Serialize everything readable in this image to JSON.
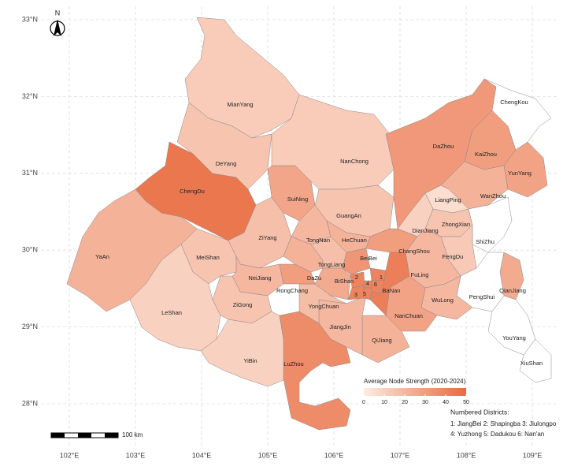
{
  "map": {
    "north": "N",
    "scale_bar": "100 km",
    "lat_ticks": [
      {
        "value": 33,
        "label": "33°N"
      },
      {
        "value": 32,
        "label": "32°N"
      },
      {
        "value": 31,
        "label": "31°N"
      },
      {
        "value": 30,
        "label": "30°N"
      },
      {
        "value": 29,
        "label": "29°N"
      },
      {
        "value": 28,
        "label": "28°N"
      }
    ],
    "lon_ticks": [
      {
        "value": 102,
        "label": "102°E"
      },
      {
        "value": 103,
        "label": "103°E"
      },
      {
        "value": 104,
        "label": "104°E"
      },
      {
        "value": 105,
        "label": "105°E"
      },
      {
        "value": 106,
        "label": "106°E"
      },
      {
        "value": 107,
        "label": "107°E"
      },
      {
        "value": 108,
        "label": "108°E"
      },
      {
        "value": 109,
        "label": "109°E"
      }
    ],
    "colorbar": {
      "title": "Average Node Strength (2020-2024)",
      "lim": [
        0,
        50
      ],
      "ticks": [
        0,
        10,
        20,
        30,
        40,
        50
      ],
      "colors": [
        "#fdebe0",
        "#e96a3f"
      ]
    },
    "no_data_color": "#ffffff",
    "regions": [
      {
        "name": "MianYang",
        "value": 12
      },
      {
        "name": "DeYang",
        "value": 15
      },
      {
        "name": "ChengDu",
        "value": 45
      },
      {
        "name": "YaAn",
        "value": 22
      },
      {
        "name": "MeiShan",
        "value": 15
      },
      {
        "name": "LeShan",
        "value": 10
      },
      {
        "name": "ZiYang",
        "value": 17
      },
      {
        "name": "NeiJiang",
        "value": 20
      },
      {
        "name": "ZiGong",
        "value": 15
      },
      {
        "name": "YiBin",
        "value": 10
      },
      {
        "name": "SuiNing",
        "value": 27
      },
      {
        "name": "NanChong",
        "value": 12
      },
      {
        "name": "GuangAn",
        "value": 15
      },
      {
        "name": "DaZhou",
        "value": 32
      },
      {
        "name": "KaiZhou",
        "value": 30
      },
      {
        "name": "YunYang",
        "value": 28
      },
      {
        "name": "ChengKou",
        "value": null
      },
      {
        "name": "WanZhou",
        "value": 22
      },
      {
        "name": "LiangPing",
        "value": 5
      },
      {
        "name": "DianJiang",
        "value": 10
      },
      {
        "name": "ZhongXian",
        "value": 15
      },
      {
        "name": "ShiZhu",
        "value": null
      },
      {
        "name": "FengDu",
        "value": 13
      },
      {
        "name": "FuLing",
        "value": 20
      },
      {
        "name": "QianJiang",
        "value": 25
      },
      {
        "name": "PengShui",
        "value": null
      },
      {
        "name": "YouYang",
        "value": null
      },
      {
        "name": "XiuShan",
        "value": null
      },
      {
        "name": "WuLong",
        "value": 20
      },
      {
        "name": "NanChuan",
        "value": 28
      },
      {
        "name": "QiJiang",
        "value": 22
      },
      {
        "name": "JiangJin",
        "value": 20
      },
      {
        "name": "YongChuan",
        "value": 18
      },
      {
        "name": "LuZhou",
        "value": 37
      },
      {
        "name": "RongChang",
        "value": 30
      },
      {
        "name": "DaZu",
        "value": 22
      },
      {
        "name": "TongNan",
        "value": 20
      },
      {
        "name": "HeChuan",
        "value": 22
      },
      {
        "name": "TongLiang",
        "value": 17
      },
      {
        "name": "BiShan",
        "value": 25
      },
      {
        "name": "BeiBei",
        "value": 33
      },
      {
        "name": "ChangShou",
        "value": 30
      },
      {
        "name": "BaNan",
        "value": 42
      },
      {
        "name": "1",
        "value": 40
      },
      {
        "name": "2",
        "value": 40
      },
      {
        "name": "3",
        "value": 40
      },
      {
        "name": "4",
        "value": 40
      },
      {
        "name": "5",
        "value": 40
      },
      {
        "name": "6",
        "value": 40
      }
    ],
    "numbered_districts": {
      "title": "Numbered Districts:",
      "lines": [
        "1: JiangBei 2: Shapingba 3: Jiulongpo",
        "4: Yuzhong 5: Dadukou 6: Nan'an"
      ]
    }
  }
}
